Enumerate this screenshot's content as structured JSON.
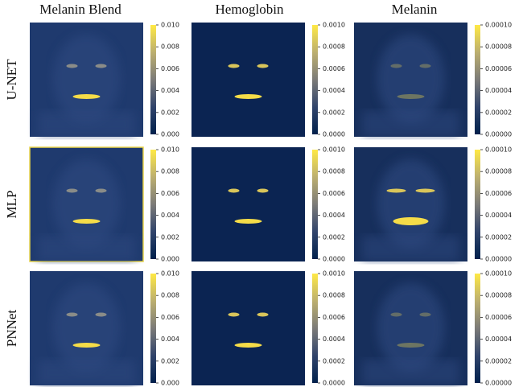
{
  "columns": [
    "Melanin Blend",
    "Hemoglobin",
    "Melanin"
  ],
  "rows": [
    "U-NET",
    "MLP",
    "PNNet"
  ],
  "colorbars": [
    {
      "ticks": [
        "0.000",
        "0.002",
        "0.004",
        "0.006",
        "0.008",
        "0.010"
      ]
    },
    {
      "ticks": [
        "0.0000",
        "0.0002",
        "0.0004",
        "0.0006",
        "0.0008",
        "0.0010"
      ]
    },
    {
      "ticks": [
        "0.00000",
        "0.00002",
        "0.00004",
        "0.00006",
        "0.00008",
        "0.00010"
      ]
    }
  ]
}
